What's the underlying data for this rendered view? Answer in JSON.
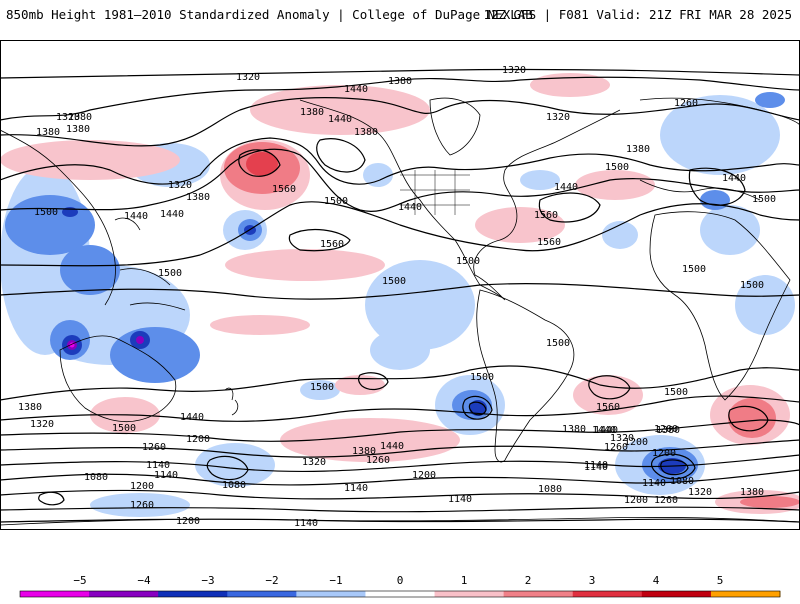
{
  "header": {
    "title": "850mb Height 1981–2010 Standardized Anomaly | College of DuPage NEXLAB",
    "model_info": "12Z GFS | F081 Valid: 21Z FRI MAR 28 2025"
  },
  "map": {
    "contour_labels": [
      "1320",
      "1380",
      "1320",
      "1380",
      "1440",
      "1380",
      "1320",
      "1560",
      "1380",
      "1440",
      "1500",
      "1560",
      "1440",
      "1320",
      "1380",
      "1440",
      "1500",
      "1560",
      "1380",
      "1440",
      "1500",
      "1260",
      "1440",
      "1320",
      "1380",
      "1440",
      "1380",
      "1500",
      "1560",
      "1500",
      "1500",
      "1500",
      "1500",
      "1500",
      "1500",
      "1500",
      "1500",
      "1380",
      "1320",
      "1500",
      "1440",
      "1260",
      "1200",
      "1140",
      "1080",
      "1140",
      "1200",
      "1080",
      "1260",
      "1200",
      "1320",
      "1380",
      "1440",
      "1260",
      "1380",
      "1440",
      "1200",
      "1140",
      "1200",
      "1140",
      "1140",
      "1080",
      "1380",
      "1440",
      "1320",
      "1200",
      "1260",
      "1140",
      "1200",
      "1080",
      "1140",
      "1500",
      "1200",
      "1260",
      "1320",
      "1380",
      "1560",
      "1140"
    ]
  },
  "colorbar": {
    "ticks": [
      "−5",
      "−4",
      "−3",
      "−2",
      "−1",
      "0",
      "1",
      "2",
      "3",
      "4",
      "5"
    ],
    "colors": [
      "#e800e8",
      "#8800c0",
      "#1030b8",
      "#3a68e0",
      "#a8c8f8",
      "#ffffff",
      "#f8c0c8",
      "#f08088",
      "#e03040",
      "#c00010",
      "#ffa000"
    ]
  }
}
